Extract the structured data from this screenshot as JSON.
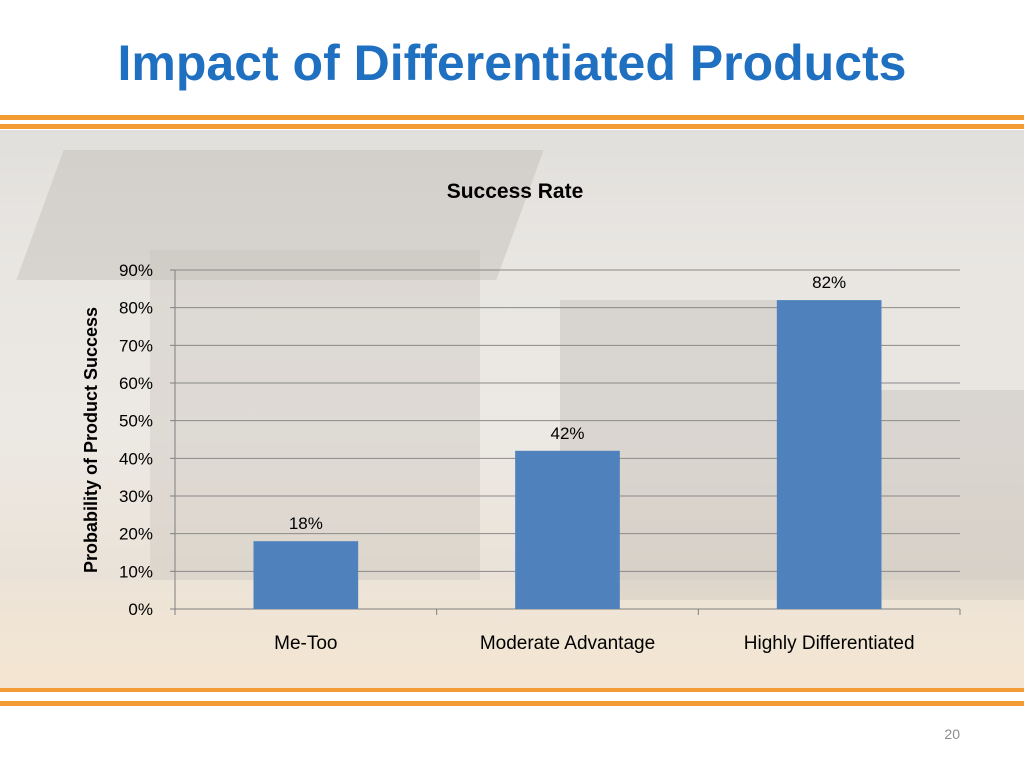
{
  "slide": {
    "title": "Impact of Differentiated Products",
    "page_number": "20"
  },
  "colors": {
    "title": "#1f70c1",
    "bar": "#4f81bd",
    "accent_stripe": "#f39c33"
  },
  "chart_data": {
    "type": "bar",
    "title": "Success Rate",
    "xlabel": "",
    "ylabel": "Probability of Product Success",
    "categories": [
      "Me-Too",
      "Moderate Advantage",
      "Highly Differentiated"
    ],
    "values": [
      18,
      42,
      82
    ],
    "value_labels": [
      "18%",
      "42%",
      "82%"
    ],
    "ylim": [
      0,
      90
    ],
    "yticks": [
      0,
      10,
      20,
      30,
      40,
      50,
      60,
      70,
      80,
      90
    ],
    "ytick_labels": [
      "0%",
      "10%",
      "20%",
      "30%",
      "40%",
      "50%",
      "60%",
      "70%",
      "80%",
      "90%"
    ],
    "grid": true,
    "legend": "none"
  }
}
